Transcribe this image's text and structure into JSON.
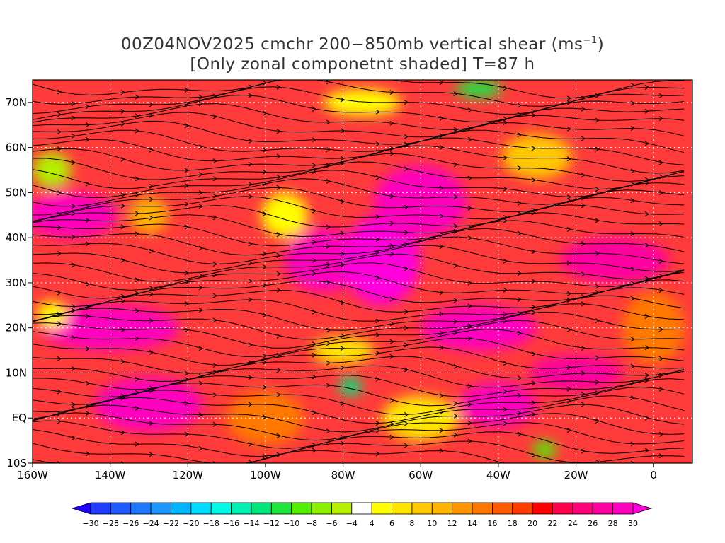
{
  "chart_data": {
    "type": "heatmap",
    "title_line1": "00Z04NOV2025 cmchr 200−850mb vertical shear (ms",
    "title_sup": "−1",
    "title_line1_end": ")",
    "title_line2": "[Only zonal componetnt shaded] T=87 h",
    "lon_range": [
      -160,
      10
    ],
    "lat_range": [
      -10,
      75
    ],
    "x_ticks": [
      {
        "v": -160,
        "label": "160W"
      },
      {
        "v": -140,
        "label": "140W"
      },
      {
        "v": -120,
        "label": "120W"
      },
      {
        "v": -100,
        "label": "100W"
      },
      {
        "v": -80,
        "label": "80W"
      },
      {
        "v": -60,
        "label": "60W"
      },
      {
        "v": -40,
        "label": "40W"
      },
      {
        "v": -20,
        "label": "20W"
      },
      {
        "v": 0,
        "label": "0"
      }
    ],
    "y_ticks": [
      {
        "v": 70,
        "label": "70N"
      },
      {
        "v": 60,
        "label": "60N"
      },
      {
        "v": 50,
        "label": "50N"
      },
      {
        "v": 40,
        "label": "40N"
      },
      {
        "v": 30,
        "label": "30N"
      },
      {
        "v": 20,
        "label": "20N"
      },
      {
        "v": 10,
        "label": "10N"
      },
      {
        "v": 0,
        "label": "EQ"
      },
      {
        "v": -10,
        "label": "10S"
      }
    ],
    "grid": true,
    "colorbar": {
      "orientation": "horizontal",
      "levels": [
        -30,
        -28,
        -26,
        -24,
        -22,
        -20,
        -18,
        -16,
        -14,
        -12,
        -10,
        -8,
        -6,
        -4,
        4,
        6,
        8,
        10,
        12,
        14,
        16,
        18,
        20,
        22,
        24,
        26,
        28,
        30
      ],
      "colors": [
        "#1e00ff",
        "#1f3cff",
        "#1e5aff",
        "#1e78ff",
        "#1e96ff",
        "#00b4ff",
        "#00dcff",
        "#00fae6",
        "#00f0b4",
        "#00e678",
        "#1ee63c",
        "#50f000",
        "#8cf000",
        "#b4f000",
        "#ffffff",
        "#ffff00",
        "#ffe600",
        "#ffc800",
        "#ffb400",
        "#ff9600",
        "#ff7800",
        "#ff5a00",
        "#ff3c00",
        "#ff0000",
        "#ff0050",
        "#ff0078",
        "#ff00a0",
        "#ff00be",
        "#ff00dc"
      ]
    },
    "field_blobs": [
      {
        "lon": -150,
        "lat": 45,
        "rx": 12,
        "ry": 5,
        "value": 28
      },
      {
        "lon": -140,
        "lat": 20,
        "rx": 18,
        "ry": 5,
        "value": 28
      },
      {
        "lon": -130,
        "lat": 3,
        "rx": 14,
        "ry": 6,
        "value": 28
      },
      {
        "lon": -85,
        "lat": 35,
        "rx": 10,
        "ry": 7,
        "value": 28
      },
      {
        "lon": -70,
        "lat": 35,
        "rx": 10,
        "ry": 10,
        "value": 30
      },
      {
        "lon": -60,
        "lat": 48,
        "rx": 12,
        "ry": 8,
        "value": 28
      },
      {
        "lon": -45,
        "lat": 20,
        "rx": 15,
        "ry": 5,
        "value": 28
      },
      {
        "lon": -10,
        "lat": 35,
        "rx": 14,
        "ry": 5,
        "value": 26
      },
      {
        "lon": -40,
        "lat": 3,
        "rx": 10,
        "ry": 5,
        "value": 28
      },
      {
        "lon": -20,
        "lat": 10,
        "rx": 12,
        "ry": 4,
        "value": 26
      },
      {
        "lon": -95,
        "lat": 45,
        "rx": 6,
        "ry": 5,
        "value": 4
      },
      {
        "lon": -75,
        "lat": 70,
        "rx": 10,
        "ry": 3,
        "value": 4
      },
      {
        "lon": -80,
        "lat": 15,
        "rx": 8,
        "ry": 3,
        "value": 6
      },
      {
        "lon": -30,
        "lat": 58,
        "rx": 9,
        "ry": 5,
        "value": 8
      },
      {
        "lon": -130,
        "lat": 45,
        "rx": 5,
        "ry": 4,
        "value": 10
      },
      {
        "lon": -155,
        "lat": 55,
        "rx": 5,
        "ry": 4,
        "value": -6
      },
      {
        "lon": -45,
        "lat": 73,
        "rx": 6,
        "ry": 2,
        "value": -12
      },
      {
        "lon": -78,
        "lat": 7,
        "rx": 3,
        "ry": 2,
        "value": -14
      },
      {
        "lon": -28,
        "lat": -7,
        "rx": 3,
        "ry": 2,
        "value": -10
      },
      {
        "lon": -155,
        "lat": 23,
        "rx": 4,
        "ry": 3,
        "value": 4
      },
      {
        "lon": -100,
        "lat": 0,
        "rx": 10,
        "ry": 6,
        "value": 14
      },
      {
        "lon": -60,
        "lat": 0,
        "rx": 10,
        "ry": 5,
        "value": 6
      },
      {
        "lon": 0,
        "lat": 20,
        "rx": 8,
        "ry": 8,
        "value": 14
      }
    ]
  }
}
